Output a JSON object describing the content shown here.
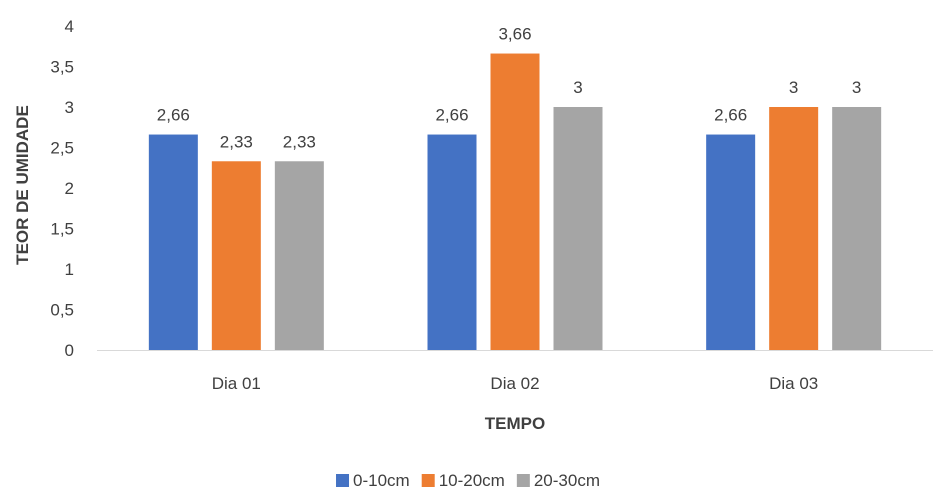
{
  "chart_data": {
    "type": "bar",
    "title": "",
    "xlabel": "TEMPO",
    "ylabel": "TEOR DE UMIDADE",
    "categories": [
      "Dia 01",
      "Dia 02",
      "Dia 03"
    ],
    "series": [
      {
        "name": "0-10cm",
        "color": "#4472C4",
        "values": [
          2.66,
          2.66,
          2.66
        ],
        "labels": [
          "2,66",
          "2,66",
          "2,66"
        ]
      },
      {
        "name": "10-20cm",
        "color": "#ED7D31",
        "values": [
          2.33,
          3.66,
          3.0
        ],
        "labels": [
          "2,33",
          "3,66",
          "3"
        ]
      },
      {
        "name": "20-30cm",
        "color": "#A5A5A5",
        "values": [
          2.33,
          3.0,
          3.0
        ],
        "labels": [
          "2,33",
          "3",
          "3"
        ]
      }
    ],
    "ylim": [
      0,
      4
    ],
    "yticks": [
      0,
      0.5,
      1,
      1.5,
      2,
      2.5,
      3,
      3.5,
      4
    ],
    "ytick_labels": [
      "0",
      "0,5",
      "1",
      "1,5",
      "2",
      "2,5",
      "3",
      "3,5",
      "4"
    ],
    "grid": false,
    "legend_position": "bottom"
  }
}
